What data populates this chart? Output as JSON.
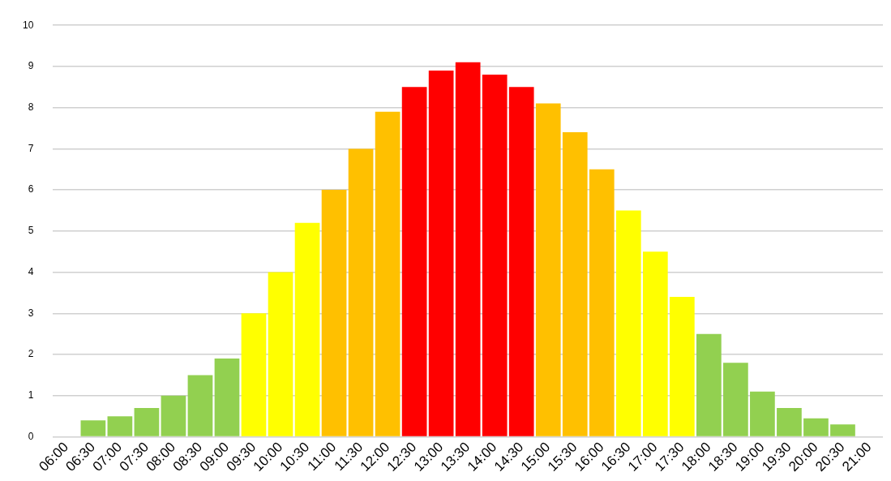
{
  "chart_data": {
    "type": "bar",
    "categories": [
      "06:00",
      "06:30",
      "07:00",
      "07:30",
      "08:00",
      "08:30",
      "09:00",
      "09:30",
      "10:00",
      "10:30",
      "11:00",
      "11:30",
      "12:00",
      "12:30",
      "13:00",
      "13:30",
      "14:00",
      "14:30",
      "15:00",
      "15:30",
      "16:00",
      "16:30",
      "17:00",
      "17:30",
      "18:00",
      "18:30",
      "19:00",
      "19:30",
      "20:00",
      "20:30",
      "21:00"
    ],
    "values": [
      null,
      0.4,
      0.5,
      0.7,
      1.0,
      1.5,
      1.9,
      3.0,
      4.0,
      5.2,
      6.0,
      7.0,
      7.9,
      8.5,
      8.9,
      9.1,
      8.8,
      8.5,
      8.1,
      7.4,
      6.5,
      5.5,
      4.5,
      3.4,
      2.5,
      1.8,
      1.1,
      0.7,
      0.45,
      0.3,
      null
    ],
    "colors": [
      null,
      "#92d050",
      "#92d050",
      "#92d050",
      "#92d050",
      "#92d050",
      "#92d050",
      "#ffff00",
      "#ffff00",
      "#ffff00",
      "#ffc000",
      "#ffc000",
      "#ffc000",
      "#ff0000",
      "#ff0000",
      "#ff0000",
      "#ff0000",
      "#ff0000",
      "#ffc000",
      "#ffc000",
      "#ffc000",
      "#ffff00",
      "#ffff00",
      "#ffff00",
      "#92d050",
      "#92d050",
      "#92d050",
      "#92d050",
      "#92d050",
      "#92d050",
      null
    ],
    "ylim": [
      0,
      10
    ],
    "yticks": [
      0,
      1,
      2,
      3,
      4,
      5,
      6,
      7,
      8,
      9,
      10
    ],
    "grid": "y",
    "legend": false
  }
}
